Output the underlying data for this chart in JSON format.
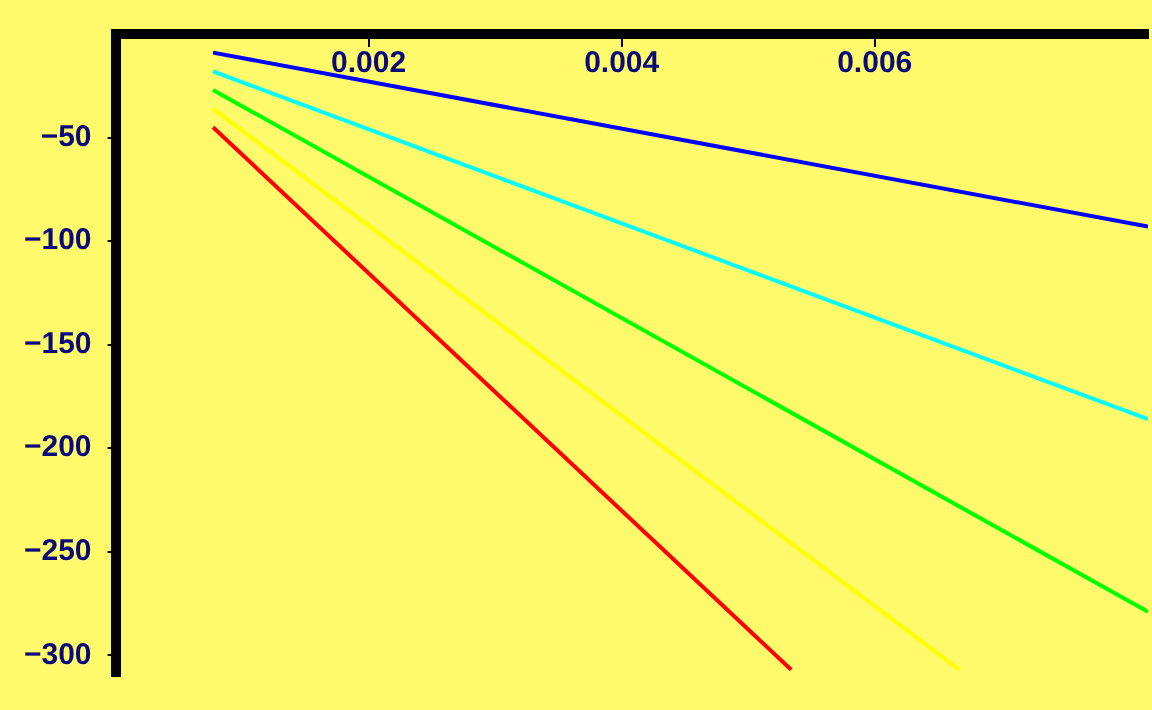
{
  "chart_data": {
    "type": "line",
    "xlim": [
      0,
      0.00816
    ],
    "ylim": [
      -310,
      0
    ],
    "xticks": [
      0.002,
      0.004,
      0.006
    ],
    "yticks": [
      -50,
      -100,
      -150,
      -200,
      -250,
      -300
    ],
    "grid": false,
    "legend": false,
    "marker": "none",
    "line_style": "solid",
    "series": [
      {
        "color": "#0000ff",
        "x": [
          0.00077,
          0.00816
        ],
        "values": [
          -9,
          -93
        ]
      },
      {
        "color": "#00ffff",
        "x": [
          0.00077,
          0.00816
        ],
        "values": [
          -18,
          -186
        ]
      },
      {
        "color": "#00ff00",
        "x": [
          0.00077,
          0.00816
        ],
        "values": [
          -27,
          -279
        ]
      },
      {
        "color": "#ffff00",
        "x": [
          0.00077,
          0.00667
        ],
        "values": [
          -36,
          -307
        ]
      },
      {
        "color": "#ff0000",
        "x": [
          0.00077,
          0.00534
        ],
        "values": [
          -45,
          -307
        ]
      }
    ]
  }
}
